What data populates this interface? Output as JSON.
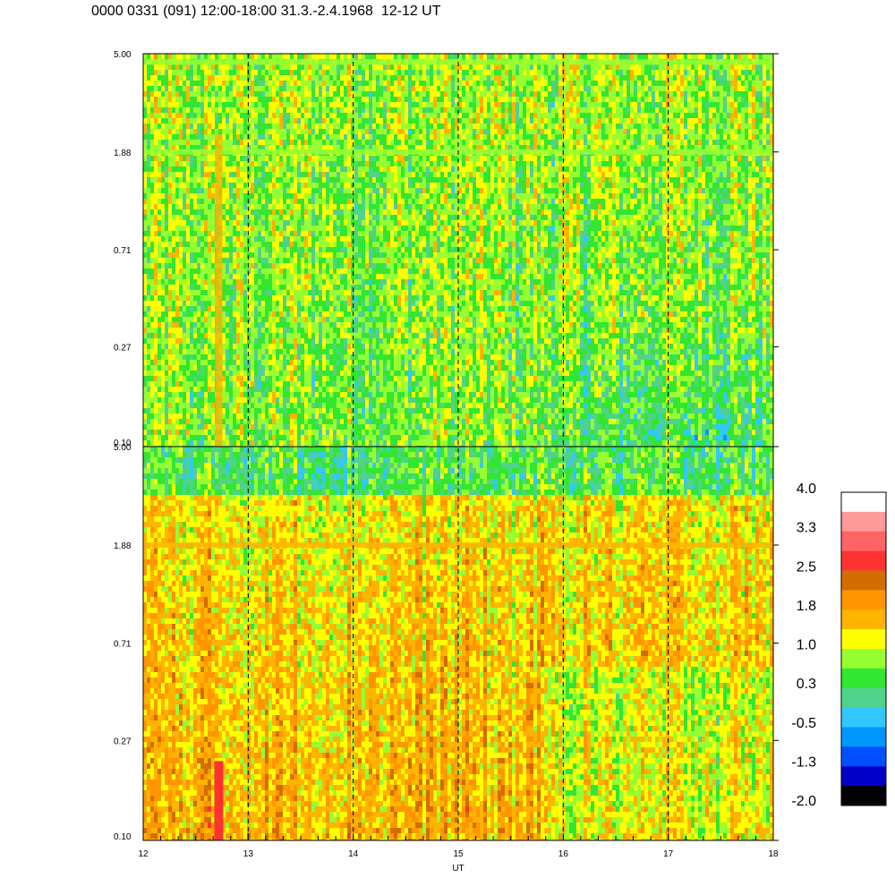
{
  "title": "0000 0331 (091) 12:00-18:00 31.3.-2.4.1968  12-12 UT",
  "chart_data": [
    {
      "type": "heatmap",
      "panel": "top",
      "x_range": [
        12,
        18
      ],
      "y_scale": "log",
      "y_range": [
        0.1,
        5.0
      ],
      "y_ticks": [
        "5.00",
        "1.88",
        "0.71",
        "0.27",
        "0.10"
      ],
      "dominant_levels": [
        0.3,
        1.0
      ],
      "features": [
        {
          "label": "band",
          "y": 4.6,
          "level": 1.0
        },
        {
          "label": "band",
          "y": 1.88,
          "level": 1.0
        }
      ],
      "grid_lines_x": [
        13,
        14,
        15,
        16,
        17
      ]
    },
    {
      "type": "heatmap",
      "panel": "bottom",
      "x_range": [
        12,
        18
      ],
      "y_scale": "log",
      "y_range": [
        0.1,
        5.0
      ],
      "y_ticks": [
        "5.00",
        "1.88",
        "0.71",
        "0.27",
        "0.10"
      ],
      "x_ticks": [
        "12",
        "13",
        "14",
        "15",
        "16",
        "17",
        "18"
      ],
      "xlabel": "UT",
      "dominant_levels": [
        1.0,
        1.8
      ],
      "features": [
        {
          "label": "band",
          "y": 1.88,
          "level": 1.8
        },
        {
          "label": "burst",
          "x": 12.72,
          "level": 2.5
        }
      ],
      "grid_lines_x": [
        13,
        14,
        15,
        16,
        17
      ]
    }
  ],
  "colorbar": {
    "labels": [
      "4.0",
      "3.3",
      "2.5",
      "1.8",
      "1.0",
      "0.3",
      "-0.5",
      "-1.3",
      "-2.0"
    ],
    "colors": [
      "#ffffff",
      "#ff9a9a",
      "#ff6464",
      "#ff3232",
      "#d26e00",
      "#ff9600",
      "#ffb400",
      "#ffff00",
      "#96ff32",
      "#32e632",
      "#50d28c",
      "#32c8ff",
      "#0096ff",
      "#0050ff",
      "#0000c8",
      "#000000"
    ]
  }
}
